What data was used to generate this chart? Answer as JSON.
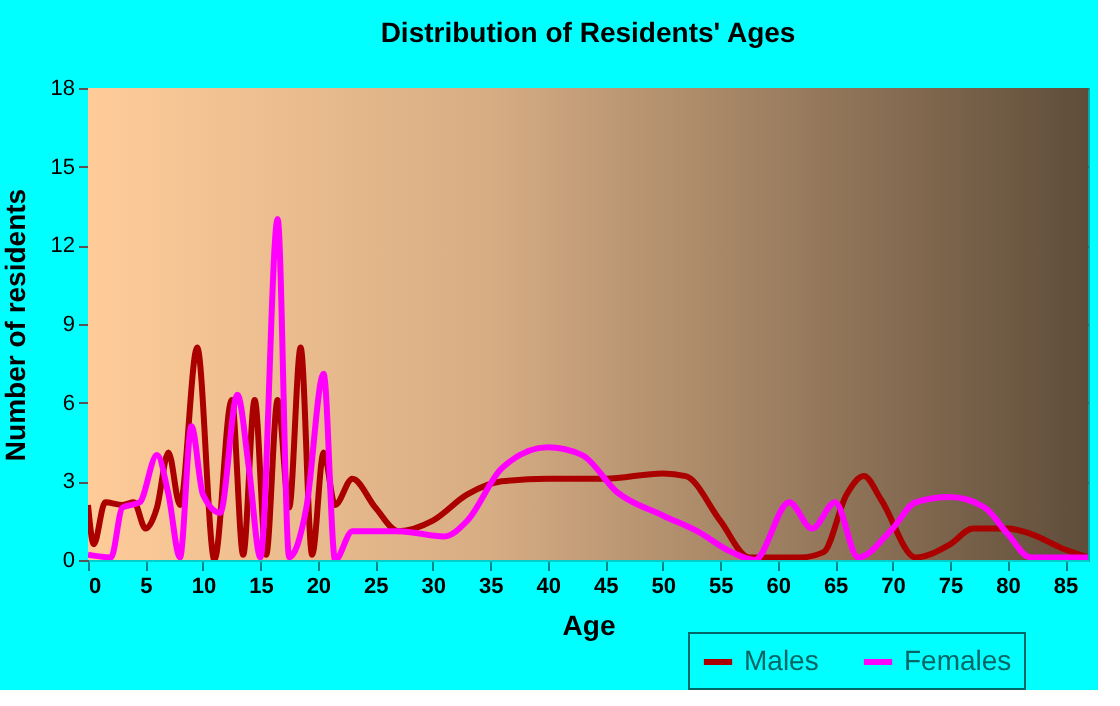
{
  "chart_data": {
    "type": "line",
    "title": "Distribution of Residents' Ages",
    "xlabel": "Age",
    "ylabel": "Number of residents",
    "xlim": [
      0,
      87
    ],
    "xticks": [
      0,
      5,
      10,
      15,
      20,
      25,
      30,
      35,
      40,
      45,
      50,
      55,
      60,
      65,
      70,
      75,
      80,
      85
    ],
    "ylim": [
      0,
      18
    ],
    "yticks": [
      0,
      3,
      6,
      9,
      12,
      15,
      18
    ],
    "grid": true,
    "legend": "bottom right",
    "marker": "none",
    "line_style": "solid",
    "series": [
      {
        "name": "Males",
        "color": "#aa0000",
        "x": [
          0,
          0.5,
          1.5,
          3,
          4,
          5,
          6,
          7,
          8,
          9.5,
          11,
          12.5,
          13.5,
          14.5,
          15.5,
          16.5,
          17.5,
          18.5,
          19.5,
          20.5,
          21.5,
          23,
          25,
          27,
          30,
          33,
          36,
          40,
          45,
          50,
          52,
          55,
          57.5,
          60,
          62,
          64,
          66,
          67.5,
          69,
          72,
          75,
          77,
          80,
          82,
          85,
          87
        ],
        "values": [
          2.1,
          0.6,
          2.2,
          2.1,
          2.2,
          1.2,
          2,
          4.1,
          2.1,
          8.1,
          0,
          6.1,
          0.2,
          6.1,
          0.2,
          6.1,
          2,
          8.1,
          0.2,
          4.1,
          2.1,
          3.1,
          2,
          1.1,
          1.5,
          2.5,
          3,
          3.1,
          3.1,
          3.3,
          3.2,
          1.5,
          0.1,
          0.1,
          0.1,
          0.3,
          2.5,
          3.2,
          2.3,
          0.1,
          0.6,
          1.2,
          1.2,
          1,
          0.4,
          0.1
        ]
      },
      {
        "name": "Females",
        "color": "#ff00ff",
        "x": [
          0,
          2,
          3,
          4.5,
          6,
          7,
          8,
          9,
          10,
          11.5,
          13,
          14,
          15,
          16.5,
          17.5,
          19,
          20.5,
          21.5,
          23,
          27,
          31,
          33,
          36,
          40,
          43,
          46,
          50,
          53,
          56,
          58,
          61,
          63,
          65,
          67,
          70,
          72,
          75,
          78,
          80,
          82,
          87
        ],
        "values": [
          0.2,
          0.1,
          2,
          2.2,
          4,
          2.5,
          0.1,
          5.1,
          2.5,
          1.8,
          6.3,
          3.5,
          0.1,
          13,
          0.1,
          2,
          7.1,
          0,
          1.1,
          1.1,
          0.9,
          1.5,
          3.5,
          4.3,
          4,
          2.6,
          1.7,
          1.1,
          0.3,
          0,
          2.2,
          1.2,
          2.2,
          0.1,
          1.2,
          2.2,
          2.4,
          2,
          1,
          0.1,
          0.1
        ]
      }
    ]
  }
}
